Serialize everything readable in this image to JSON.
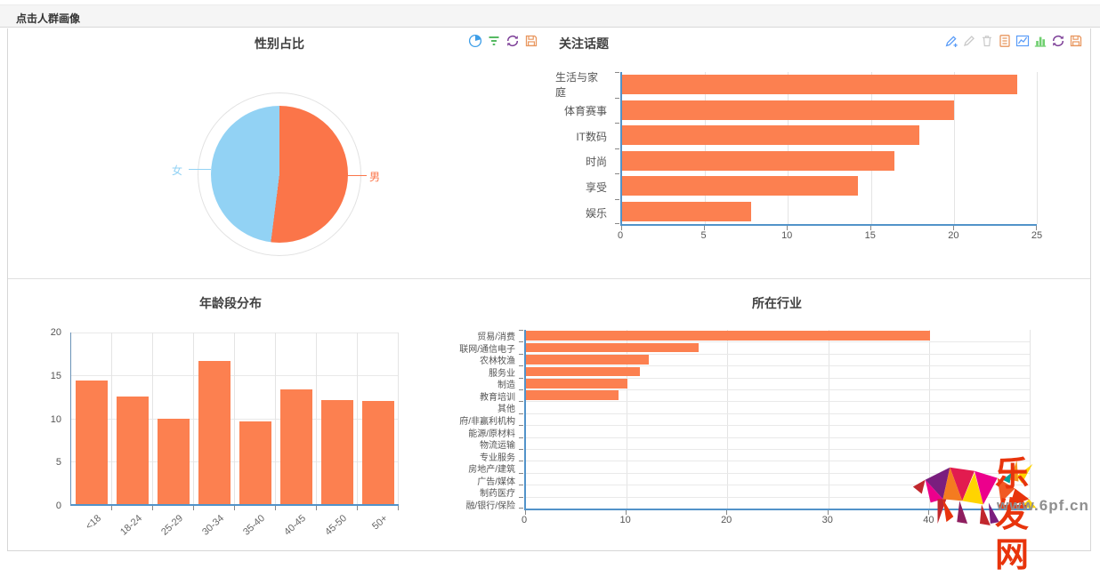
{
  "header": {
    "title": "点击人群画像"
  },
  "toolbars": {
    "gender": [
      "pie-chart-icon",
      "filter-icon",
      "refresh-icon",
      "save-icon"
    ],
    "topics": [
      "pencil-add-icon",
      "pencil-icon",
      "trash-icon",
      "document-icon",
      "line-chart-icon",
      "bar-chart-icon",
      "refresh-icon",
      "save-icon"
    ]
  },
  "colors": {
    "bar_orange": "#fc8050",
    "pie_male": "#fb7549",
    "pie_female": "#92d2f4",
    "axis_blue": "#5293c9",
    "grid": "#e4e4e4",
    "title_text": "#404040"
  },
  "watermark": {
    "brand": "乐发网",
    "url": "www.6pf.cn"
  },
  "chart_data": [
    {
      "id": "gender",
      "type": "pie",
      "title": "性别占比",
      "slices": [
        {
          "label": "男",
          "value": 52,
          "color": "#fb7549",
          "callout": "right"
        },
        {
          "label": "女",
          "value": 48,
          "color": "#92d2f4",
          "callout": "left"
        }
      ],
      "legend_position": "callout-labels"
    },
    {
      "id": "topics",
      "type": "bar",
      "orientation": "horizontal",
      "title": "关注话题",
      "categories": [
        "生活与家庭",
        "体育赛事",
        "IT数码",
        "时尚",
        "享受",
        "娱乐"
      ],
      "values": [
        23.8,
        20,
        17.9,
        16.4,
        14.2,
        7.8
      ],
      "xlim": [
        0,
        25
      ],
      "xticks": [
        0,
        5,
        10,
        15,
        20,
        25
      ],
      "grid_ticks": [
        5,
        10,
        15,
        20,
        25
      ],
      "row_grid": false,
      "color": "#fc8050"
    },
    {
      "id": "age",
      "type": "bar",
      "orientation": "vertical",
      "title": "年龄段分布",
      "categories": [
        "<18",
        "18-24",
        "25-29",
        "30-34",
        "35-40",
        "40-45",
        "45-50",
        "50+"
      ],
      "values": [
        14.4,
        12.5,
        9.9,
        16.7,
        9.6,
        13.4,
        12.1,
        12
      ],
      "ylim": [
        0,
        20
      ],
      "yticks": [
        0,
        5,
        10,
        15,
        20
      ],
      "color": "#fc8050"
    },
    {
      "id": "industry",
      "type": "bar",
      "orientation": "horizontal",
      "title": "所在行业",
      "categories": [
        "贸易/消费",
        "联网/通信电子",
        "农林牧渔",
        "服务业",
        "制造",
        "教育培训",
        "其他",
        "府/非赢利机构",
        "能源/原材料",
        "物流运输",
        "专业服务",
        "房地产/建筑",
        "广告/媒体",
        "制药医疗",
        "融/银行/保险"
      ],
      "values": [
        40.1,
        17.1,
        12.2,
        11.3,
        10.1,
        9.2,
        0,
        0,
        0,
        0,
        0,
        0,
        0,
        0,
        0
      ],
      "xlim": [
        0,
        50
      ],
      "xticks": [
        0,
        10,
        20,
        30,
        40
      ],
      "grid_ticks": [
        10,
        20,
        30,
        40,
        50
      ],
      "row_grid": true,
      "color": "#fc8050"
    }
  ]
}
